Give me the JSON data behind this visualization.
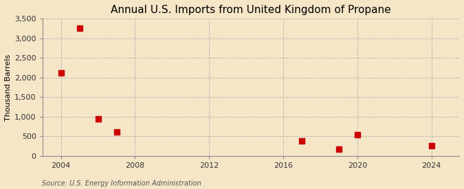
{
  "title": "Annual U.S. Imports from United Kingdom of Propane",
  "ylabel": "Thousand Barrels",
  "source": "Source: U.S. Energy Information Administration",
  "background_color": "#f5e6c8",
  "data_points": [
    {
      "year": 2004,
      "value": 2117
    },
    {
      "year": 2005,
      "value": 3253
    },
    {
      "year": 2006,
      "value": 950
    },
    {
      "year": 2007,
      "value": 621
    },
    {
      "year": 2017,
      "value": 380
    },
    {
      "year": 2019,
      "value": 175
    },
    {
      "year": 2020,
      "value": 540
    },
    {
      "year": 2024,
      "value": 262
    }
  ],
  "marker_color": "#cc0000",
  "marker_size": 36,
  "xlim": [
    2003,
    2025.5
  ],
  "ylim": [
    0,
    3500
  ],
  "xticks": [
    2004,
    2008,
    2012,
    2016,
    2020,
    2024
  ],
  "yticks": [
    0,
    500,
    1000,
    1500,
    2000,
    2500,
    3000,
    3500
  ],
  "ytick_labels": [
    "0",
    "500",
    "1,000",
    "1,500",
    "2,000",
    "2,500",
    "3,000",
    "3,500"
  ],
  "grid_color": "#b0b0b0",
  "grid_style": "--",
  "title_fontsize": 11,
  "label_fontsize": 8,
  "tick_fontsize": 8,
  "source_fontsize": 7
}
